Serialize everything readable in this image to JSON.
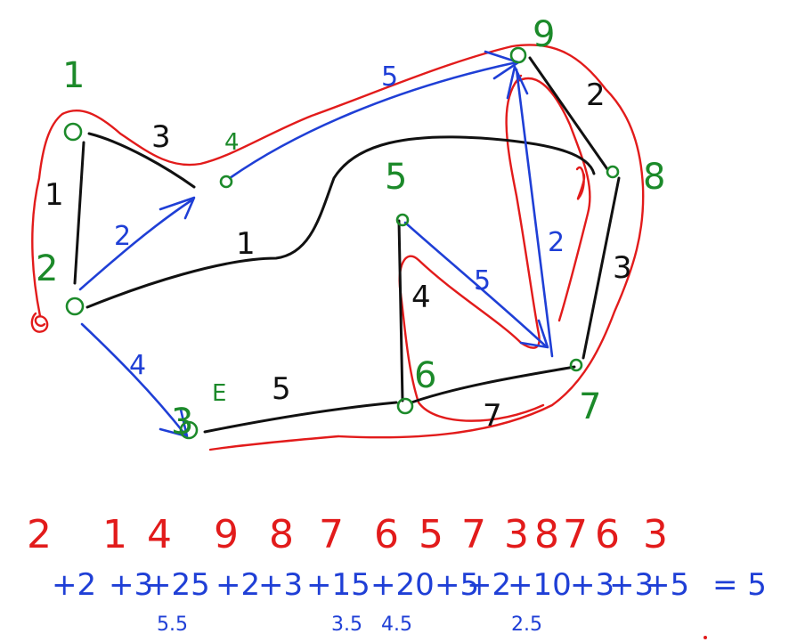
{
  "node_labels": {
    "n1": "1",
    "n2": "2",
    "n3": "3",
    "n4": "4",
    "n5": "5",
    "n6": "6",
    "n7": "7",
    "n8": "8",
    "n9": "9",
    "nE": "E"
  },
  "edge_weights": {
    "w_1_2": "1",
    "w_1_4": "3",
    "w_2_4": "2",
    "w_2_8": "1",
    "w_2_3": "4",
    "w_3_6": "5",
    "w_4_9": "5",
    "w_9_8": "2",
    "w_8_7": "3",
    "w_5_6": "4",
    "w_5_7": "5",
    "w_7_9": "2",
    "w_6_7": "7"
  },
  "tour_sequence": [
    "2",
    "1",
    "4",
    "9",
    "8",
    "7",
    "6",
    "5",
    "7",
    "3",
    "8",
    "7",
    "6",
    "3"
  ],
  "cost_row": [
    "+2",
    "+3",
    "+25",
    "+2",
    "+3",
    "+15",
    "+20",
    "+5",
    "+2",
    "+10",
    "+3",
    "+3",
    "+5",
    "= 5"
  ],
  "sub_notes": [
    "5.5",
    "3.5",
    "4.5",
    "2.5"
  ],
  "colors": {
    "black": "#111111",
    "blue": "#1f3fd6",
    "red": "#e21b1b",
    "green": "#1c8a2a"
  }
}
